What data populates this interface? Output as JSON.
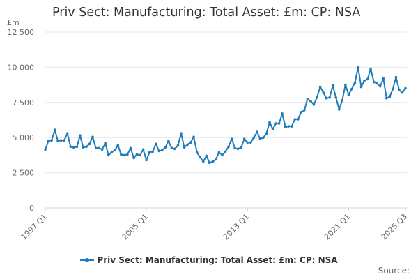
{
  "title": "Priv Sect: Manufacturing: Total Asset: £m: CP: NSA",
  "unit_label": "£m",
  "source_label": "Source:",
  "colors": {
    "series": "#1f7ab8",
    "grid": "#e6e6e6",
    "axis_text": "#666666"
  },
  "chart_data": {
    "type": "line",
    "title": "Priv Sect: Manufacturing: Total Asset: £m: CP: NSA",
    "xlabel": "",
    "ylabel": "£m",
    "ylim": [
      0,
      12500
    ],
    "yticks": [
      0,
      2500,
      5000,
      7500,
      10000,
      12500
    ],
    "ytick_labels": [
      "0",
      "2 500",
      "5 000",
      "7 500",
      "10 000",
      "12 500"
    ],
    "xtick_labels": [
      "1997 Q1",
      "2005 Q1",
      "2013 Q1",
      "2021 Q1",
      "2025 Q3"
    ],
    "xticks": [
      "1997 Q1",
      "2005 Q1",
      "2013 Q1",
      "2021 Q1",
      "2025 Q3"
    ],
    "x_start": "1997 Q1",
    "x_end": "2025 Q3",
    "grid": true,
    "legend_position": "bottom",
    "series": [
      {
        "name": "Priv Sect: Manufacturing: Total Asset: £m: CP: NSA",
        "values": [
          4150,
          4750,
          4800,
          5550,
          4750,
          4800,
          4800,
          5300,
          4350,
          4300,
          4350,
          5150,
          4300,
          4350,
          4550,
          5050,
          4250,
          4250,
          4150,
          4600,
          3750,
          3950,
          4100,
          4450,
          3800,
          3750,
          3800,
          4250,
          3550,
          3800,
          3750,
          4150,
          3400,
          3950,
          4000,
          4550,
          4050,
          4100,
          4300,
          4750,
          4250,
          4200,
          4450,
          5300,
          4300,
          4500,
          4650,
          5050,
          3950,
          3600,
          3300,
          3700,
          3200,
          3300,
          3450,
          3950,
          3750,
          4000,
          4350,
          4900,
          4250,
          4200,
          4300,
          4900,
          4650,
          4650,
          5000,
          5400,
          4900,
          5000,
          5300,
          6100,
          5600,
          6000,
          6000,
          6700,
          5750,
          5800,
          5800,
          6300,
          6300,
          6800,
          6950,
          7750,
          7600,
          7350,
          7850,
          8600,
          8200,
          7800,
          7850,
          8700,
          7850,
          7000,
          7650,
          8750,
          8050,
          8450,
          8900,
          10000,
          8600,
          9050,
          9150,
          9900,
          8950,
          8850,
          8650,
          9200,
          7800,
          7900,
          8450,
          9300,
          8400,
          8200,
          8500
        ]
      }
    ]
  }
}
